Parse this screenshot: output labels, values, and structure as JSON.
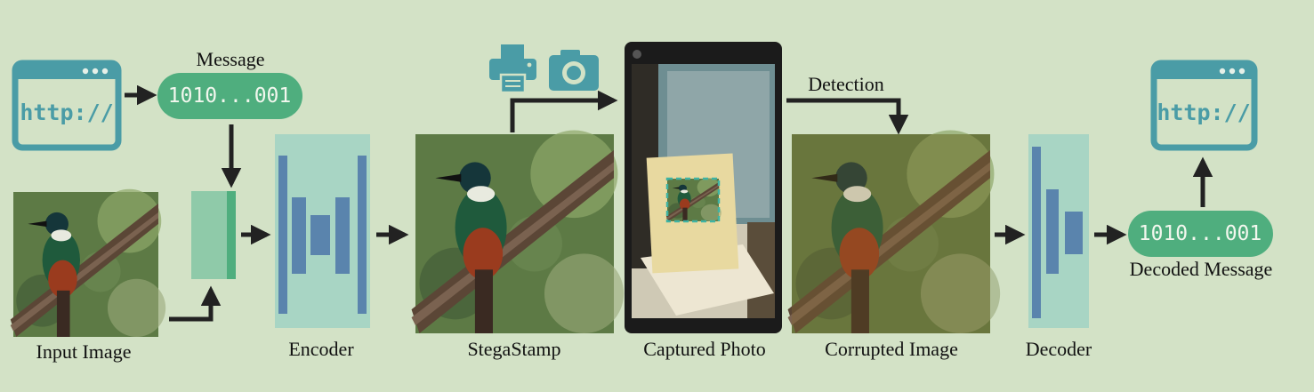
{
  "colors": {
    "background": "#d3e2c6",
    "browser_teal": "#4a9ca6",
    "message_green": "#4fae7e",
    "block_light": "#a8d5c4",
    "layer_blue": "#5a84ad",
    "arrow": "#222222"
  },
  "input_url": {
    "text": "http://",
    "icon": "browser-window-icon"
  },
  "message": {
    "title": "Message",
    "bits": "1010...001"
  },
  "labels": {
    "input_image": "Input Image",
    "encoder": "Encoder",
    "stegastamp": "StegaStamp",
    "captured_photo": "Captured Photo",
    "corrupted_image": "Corrupted Image",
    "decoder": "Decoder"
  },
  "detection": "Detection",
  "capture_icons": [
    "printer-icon",
    "camera-icon"
  ],
  "decoded": {
    "bits": "1010...001",
    "title": "Decoded Message"
  },
  "output_url": {
    "text": "http://",
    "icon": "browser-window-icon"
  }
}
